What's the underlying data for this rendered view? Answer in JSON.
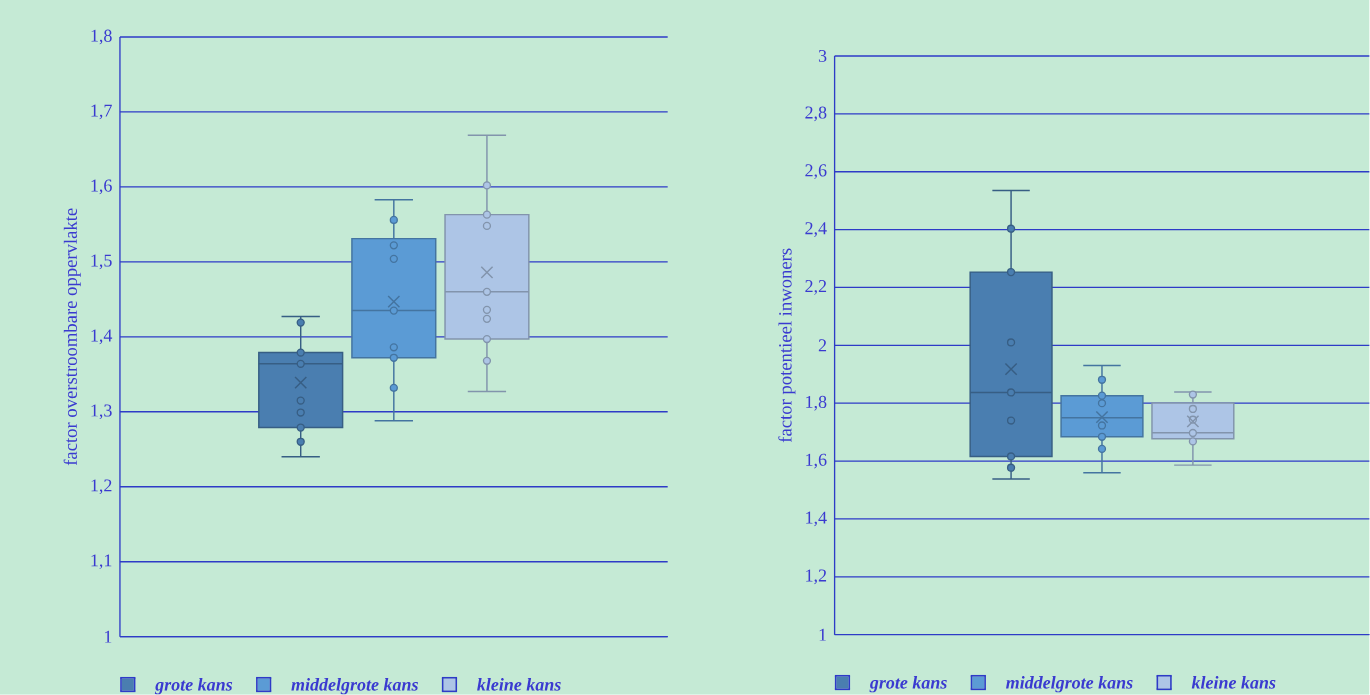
{
  "chart_data": [
    {
      "type": "box",
      "ylabel": "factor overstroombare oppervlakte",
      "categories": [
        null
      ],
      "ylim": [
        1,
        1.8
      ],
      "yticks": [
        1,
        {
          "value": 1.1,
          "label": "1,1"
        },
        {
          "value": 1.2,
          "label": "1,2"
        },
        {
          "value": 1.3,
          "label": "1,3"
        },
        {
          "value": 1.4,
          "label": "1,4"
        },
        {
          "value": 1.5,
          "label": "1,5"
        },
        {
          "value": 1.6,
          "label": "1,6"
        },
        {
          "value": 1.7,
          "label": "1,7"
        },
        {
          "value": 1.8,
          "label": "1,8"
        }
      ],
      "grid": "y",
      "legend": "bottom",
      "series": [
        {
          "name": "grote kans",
          "color": "#4a7eb0",
          "boxes": [
            {
              "low": 1.24,
              "q1": 1.279,
              "median": 1.364,
              "q3": 1.379,
              "high": 1.427,
              "mean": 1.339,
              "outliers": [
                1.419,
                1.379,
                1.364,
                1.315,
                1.299,
                1.279,
                1.26
              ]
            }
          ]
        },
        {
          "name": "middelgrote kans",
          "color": "#5b9bd5",
          "boxes": [
            {
              "low": 1.288,
              "q1": 1.372,
              "median": 1.435,
              "q3": 1.531,
              "high": 1.583,
              "mean": 1.447,
              "outliers": [
                1.556,
                1.522,
                1.504,
                1.435,
                1.386,
                1.372,
                1.332
              ]
            }
          ]
        },
        {
          "name": "kleine kans",
          "color": "#adc5e6",
          "boxes": [
            {
              "low": 1.327,
              "q1": 1.397,
              "median": 1.46,
              "q3": 1.563,
              "high": 1.669,
              "mean": 1.486,
              "outliers": [
                1.602,
                1.563,
                1.548,
                1.46,
                1.436,
                1.424,
                1.397,
                1.368
              ]
            }
          ]
        }
      ]
    },
    {
      "type": "box",
      "ylabel": "factor potentieel inwoners",
      "categories": [
        null
      ],
      "ylim": [
        1,
        3
      ],
      "yticks": [
        1,
        {
          "value": 1.2,
          "label": "1,2"
        },
        {
          "value": 1.4,
          "label": "1,4"
        },
        {
          "value": 1.6,
          "label": "1,6"
        },
        {
          "value": 1.8,
          "label": "1,8"
        },
        2,
        {
          "value": 2.2,
          "label": "2,2"
        },
        {
          "value": 2.4,
          "label": "2,4"
        },
        {
          "value": 2.6,
          "label": "2,6"
        },
        {
          "value": 2.8,
          "label": "2,8"
        },
        3
      ],
      "grid": "y",
      "legend": "bottom",
      "series": [
        {
          "name": "grote kans",
          "color": "#4a7eb0",
          "boxes": [
            {
              "low": 1.538,
              "q1": 1.616,
              "median": 1.837,
              "q3": 2.253,
              "high": 2.535,
              "mean": 1.918,
              "outliers": [
                2.403,
                2.253,
                2.01,
                1.837,
                1.74,
                1.616,
                1.577
              ]
            }
          ]
        },
        {
          "name": "middelgrote kans",
          "color": "#5b9bd5",
          "boxes": [
            {
              "low": 1.56,
              "q1": 1.684,
              "median": 1.75,
              "q3": 1.826,
              "high": 1.93,
              "mean": 1.752,
              "outliers": [
                1.881,
                1.826,
                1.8,
                1.723,
                1.684,
                1.642
              ]
            }
          ]
        },
        {
          "name": "kleine kans",
          "color": "#adc5e6",
          "boxes": [
            {
              "low": 1.586,
              "q1": 1.677,
              "median": 1.698,
              "q3": 1.801,
              "high": 1.839,
              "mean": 1.737,
              "outliers": [
                1.83,
                1.78,
                1.743,
                1.697,
                1.668
              ]
            }
          ]
        }
      ]
    }
  ]
}
